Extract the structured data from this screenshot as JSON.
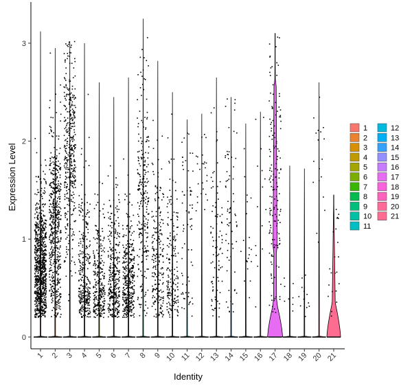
{
  "chart_data": {
    "type": "violin",
    "xlabel": "Identity",
    "ylabel": "Expression Level",
    "categories": [
      "1",
      "2",
      "3",
      "4",
      "5",
      "6",
      "7",
      "8",
      "9",
      "10",
      "11",
      "12",
      "13",
      "14",
      "15",
      "16",
      "17",
      "18",
      "19",
      "20",
      "21"
    ],
    "yticks": [
      0,
      1,
      2,
      3
    ],
    "ylim": [
      -0.12,
      3.42
    ],
    "grid": false,
    "legend_position": "right",
    "jitter_points": true,
    "colors": [
      "#F8766D",
      "#EA8331",
      "#D89000",
      "#C09B00",
      "#A3A500",
      "#7CAE00",
      "#39B600",
      "#00BB4E",
      "#00BF7D",
      "#00C1A3",
      "#00BFC4",
      "#00BAE0",
      "#00B0F6",
      "#35A2FF",
      "#9590FF",
      "#C77CFF",
      "#E76BF3",
      "#FA62DB",
      "#FF62BC",
      "#FF6A98",
      "#FF6C91"
    ],
    "series": [
      {
        "name": "1",
        "max": 3.12,
        "n_points": 900,
        "median": 0.7,
        "spread": 0.38
      },
      {
        "name": "2",
        "max": 2.95,
        "n_points": 560,
        "median": 1.1,
        "spread": 0.6
      },
      {
        "name": "3",
        "max": 3.02,
        "n_points": 400,
        "median": 1.9,
        "spread": 0.55
      },
      {
        "name": "4",
        "max": 3.0,
        "n_points": 300,
        "median": 0.6,
        "spread": 0.5
      },
      {
        "name": "5",
        "max": 2.6,
        "n_points": 280,
        "median": 0.5,
        "spread": 0.45
      },
      {
        "name": "6",
        "max": 2.45,
        "n_points": 330,
        "median": 0.6,
        "spread": 0.4
      },
      {
        "name": "7",
        "max": 2.65,
        "n_points": 380,
        "median": 0.55,
        "spread": 0.35
      },
      {
        "name": "8",
        "max": 3.25,
        "n_points": 260,
        "median": 1.4,
        "spread": 0.65
      },
      {
        "name": "9",
        "max": 2.82,
        "n_points": 220,
        "median": 0.8,
        "spread": 0.55
      },
      {
        "name": "10",
        "max": 2.5,
        "n_points": 180,
        "median": 0.7,
        "spread": 0.55
      },
      {
        "name": "11",
        "max": 2.22,
        "n_points": 70,
        "median": 1.0,
        "spread": 0.55
      },
      {
        "name": "12",
        "max": 2.28,
        "n_points": 25,
        "median": 1.7,
        "spread": 0.4
      },
      {
        "name": "13",
        "max": 2.65,
        "n_points": 90,
        "median": 0.9,
        "spread": 0.6
      },
      {
        "name": "14",
        "max": 2.45,
        "n_points": 70,
        "median": 1.3,
        "spread": 0.6
      },
      {
        "name": "15",
        "max": 2.18,
        "n_points": 20,
        "median": 1.0,
        "spread": 0.5
      },
      {
        "name": "16",
        "max": 2.3,
        "n_points": 15,
        "median": 1.6,
        "spread": 0.5
      },
      {
        "name": "17",
        "max": 3.1,
        "n_points": 160,
        "median": 1.5,
        "spread": 0.7
      },
      {
        "name": "18",
        "max": 1.75,
        "n_points": 8,
        "median": 0.5,
        "spread": 0.4
      },
      {
        "name": "19",
        "max": 1.72,
        "n_points": 14,
        "median": 0.4,
        "spread": 0.3
      },
      {
        "name": "20",
        "max": 2.6,
        "n_points": 18,
        "median": 1.7,
        "spread": 0.5
      },
      {
        "name": "21",
        "max": 1.45,
        "n_points": 22,
        "median": 0.7,
        "spread": 0.5
      }
    ]
  }
}
